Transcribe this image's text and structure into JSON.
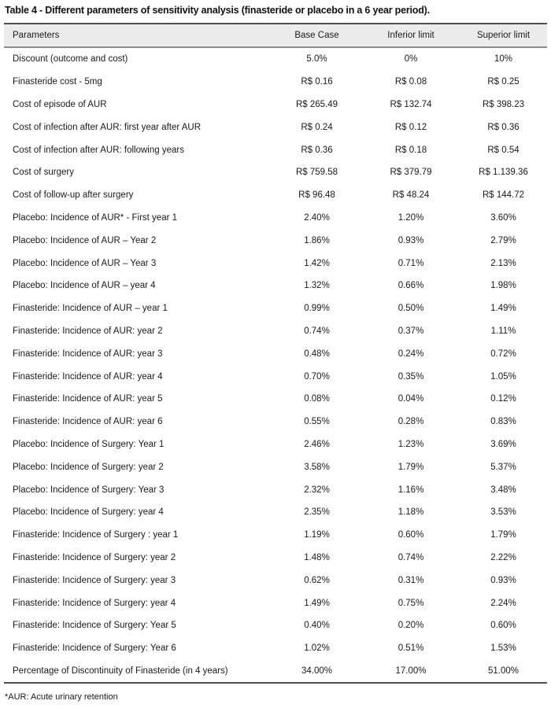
{
  "title": "Table 4 - Different parameters of sensitivity analysis (finasteride or placebo in a 6 year period).",
  "table": {
    "columns": [
      "Parameters",
      "Base Case",
      "Inferior limit",
      "Superior limit"
    ],
    "rows": [
      [
        "Discount (outcome and cost)",
        "5.0%",
        "0%",
        "10%"
      ],
      [
        "Finasteride cost - 5mg",
        "R$ 0.16",
        "R$ 0.08",
        "R$ 0.25"
      ],
      [
        "Cost of episode of AUR",
        "R$ 265.49",
        "R$ 132.74",
        "R$ 398.23"
      ],
      [
        "Cost of infection after AUR: first year after AUR",
        "R$ 0.24",
        "R$ 0.12",
        "R$ 0.36"
      ],
      [
        "Cost of infection after AUR: following years",
        "R$ 0.36",
        "R$ 0.18",
        "R$ 0.54"
      ],
      [
        "Cost of surgery",
        "R$ 759.58",
        "R$ 379.79",
        "R$ 1.139.36"
      ],
      [
        "Cost of follow-up after surgery",
        "R$ 96.48",
        "R$ 48.24",
        "R$ 144.72"
      ],
      [
        "Placebo: Incidence of AUR* - First year 1",
        "2.40%",
        "1.20%",
        "3.60%"
      ],
      [
        "Placebo: Incidence of AUR – Year 2",
        "1.86%",
        "0.93%",
        "2.79%"
      ],
      [
        "Placebo: Incidence of AUR – Year 3",
        "1.42%",
        "0.71%",
        "2.13%"
      ],
      [
        "Placebo: Incidence of AUR – year 4",
        "1.32%",
        "0.66%",
        "1.98%"
      ],
      [
        "Finasteride: Incidence of AUR – year 1",
        "0.99%",
        "0.50%",
        "1.49%"
      ],
      [
        "Finasteride: Incidence of AUR: year 2",
        "0.74%",
        "0.37%",
        "1.11%"
      ],
      [
        "Finasteride: Incidence of AUR: year 3",
        "0.48%",
        "0.24%",
        "0.72%"
      ],
      [
        "Finasteride: Incidence of AUR: year 4",
        "0.70%",
        "0.35%",
        "1.05%"
      ],
      [
        "Finasteride: Incidence of AUR: year 5",
        "0.08%",
        "0.04%",
        "0.12%"
      ],
      [
        "Finasteride: Incidence of AUR: year 6",
        "0.55%",
        "0.28%",
        "0.83%"
      ],
      [
        "Placebo: Incidence of Surgery: Year 1",
        "2.46%",
        "1.23%",
        "3.69%"
      ],
      [
        "Placebo: Incidence of Surgery: year 2",
        "3.58%",
        "1.79%",
        "5.37%"
      ],
      [
        "Placebo: Incidence of Surgery: Year 3",
        "2.32%",
        "1.16%",
        "3.48%"
      ],
      [
        "Placebo: Incidence of Surgery: year 4",
        "2.35%",
        "1.18%",
        "3.53%"
      ],
      [
        "Finasteride: Incidence of Surgery : year 1",
        "1.19%",
        "0.60%",
        "1.79%"
      ],
      [
        "Finasteride: Incidence of Surgery: year 2",
        "1.48%",
        "0.74%",
        "2.22%"
      ],
      [
        "Finasteride: Incidence of Surgery: year 3",
        "0.62%",
        "0.31%",
        "0.93%"
      ],
      [
        "Finasteride: Incidence of Surgery: year 4",
        "1.49%",
        "0.75%",
        "2.24%"
      ],
      [
        "Finasteride: Incidence of Surgery: Year 5",
        "0.40%",
        "0.20%",
        "0.60%"
      ],
      [
        "Finasteride: Incidence of Surgery: Year 6",
        "1.02%",
        "0.51%",
        "1.53%"
      ],
      [
        "Percentage of Discontinuity of Finasteride (in 4 years)",
        "34.00%",
        "17.00%",
        "51.00%"
      ]
    ]
  },
  "footnote": "*AUR: Acute urinary retention",
  "colors": {
    "header_background": "#ececec",
    "rule_dark": "#4f4f4f",
    "rule_header_bottom": "#8c8c8c",
    "text": "#1a1a1a",
    "page_background": "#ffffff"
  }
}
